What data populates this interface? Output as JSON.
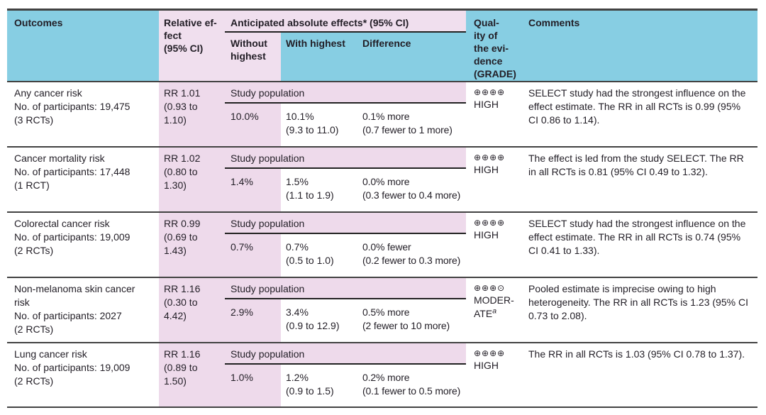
{
  "table": {
    "title": "Summary of findings: anticipated absolute effects",
    "colors": {
      "header_blue": "#87cee3",
      "header_pink": "#f0dfee",
      "body_pink": "#eedaeb",
      "rule_dark": "#424242",
      "rule_thin": "#222222",
      "text": "#221e26"
    },
    "header": {
      "outcomes": "Outcomes",
      "relative_effect": "Relative ef-\nfect\n(95% CI)",
      "absolute_group": "Anticipated absolute effects* (95% CI)",
      "without": "Without\nhighest",
      "with_highest": "With highest",
      "difference": "Difference",
      "quality": "Qual-\nity of\nthe evi-\ndence\n(GRADE)",
      "comments": "Comments"
    },
    "rows": [
      {
        "outcome": "Any cancer risk\nNo. of participants: 19,475\n(3 RCTs)",
        "relative_effect": "RR 1.01\n(0.93 to\n1.10)",
        "population_label": "Study population",
        "without": "10.0%",
        "with_highest": "10.1%\n(9.3 to 11.0)",
        "difference": "0.1% more\n(0.7 fewer to 1 more)",
        "grade_symbols": "⊕⊕⊕⊕",
        "grade_label": "HIGH",
        "grade_note": "",
        "comment": "SELECT study had the strongest influence on the effect estimate. The RR in all RCTs is 0.99 (95% CI 0.86 to 1.14)."
      },
      {
        "outcome": "Cancer mortality risk\nNo. of participants: 17,448\n(1 RCT)",
        "relative_effect": "RR 1.02\n(0.80 to\n1.30)",
        "population_label": "Study population",
        "without": "1.4%",
        "with_highest": "1.5%\n(1.1 to 1.9)",
        "difference": "0.0% more\n(0.3 fewer to 0.4 more)",
        "grade_symbols": "⊕⊕⊕⊕",
        "grade_label": "HIGH",
        "grade_note": "",
        "comment": "The effect is led from the study SELECT. The RR in all RCTs is 0.81 (95% CI 0.49 to 1.32)."
      },
      {
        "outcome": "Colorectal cancer risk\nNo. of participants: 19,009\n(2 RCTs)",
        "relative_effect": "RR 0.99\n(0.69 to\n1.43)",
        "population_label": "Study population",
        "without": "0.7%",
        "with_highest": "0.7%\n(0.5 to 1.0)",
        "difference": "0.0% fewer\n(0.2 fewer to 0.3 more)",
        "grade_symbols": "⊕⊕⊕⊕",
        "grade_label": "HIGH",
        "grade_note": "",
        "comment": "SELECT study had the strongest influence on the effect estimate. The RR in all RCTs is 0.74 (95% CI 0.41 to 1.33)."
      },
      {
        "outcome": "Non-melanoma skin cancer risk\nNo. of participants: 2027\n(2 RCTs)",
        "relative_effect": "RR 1.16\n(0.30 to\n4.42)",
        "population_label": "Study population",
        "without": "2.9%",
        "with_highest": "3.4%\n(0.9 to 12.9)",
        "difference": "0.5% more\n(2 fewer to 10 more)",
        "grade_symbols": "⊕⊕⊕⊙",
        "grade_label": "MODER-\nATE",
        "grade_note": "a",
        "comment": "Pooled estimate is imprecise owing to high heterogeneity. The RR in all RCTs is 1.23 (95% CI 0.73 to 2.08)."
      },
      {
        "outcome": "Lung cancer risk\nNo. of participants: 19,009\n(2 RCTs)",
        "relative_effect": "RR 1.16\n(0.89 to\n1.50)",
        "population_label": "Study population",
        "without": "1.0%",
        "with_highest": "1.2%\n(0.9 to 1.5)",
        "difference": "0.2% more\n(0.1 fewer to 0.5 more)",
        "grade_symbols": "⊕⊕⊕⊕",
        "grade_label": "HIGH",
        "grade_note": "",
        "comment": "The RR in all RCTs is 1.03 (95% CI 0.78 to 1.37)."
      }
    ]
  }
}
